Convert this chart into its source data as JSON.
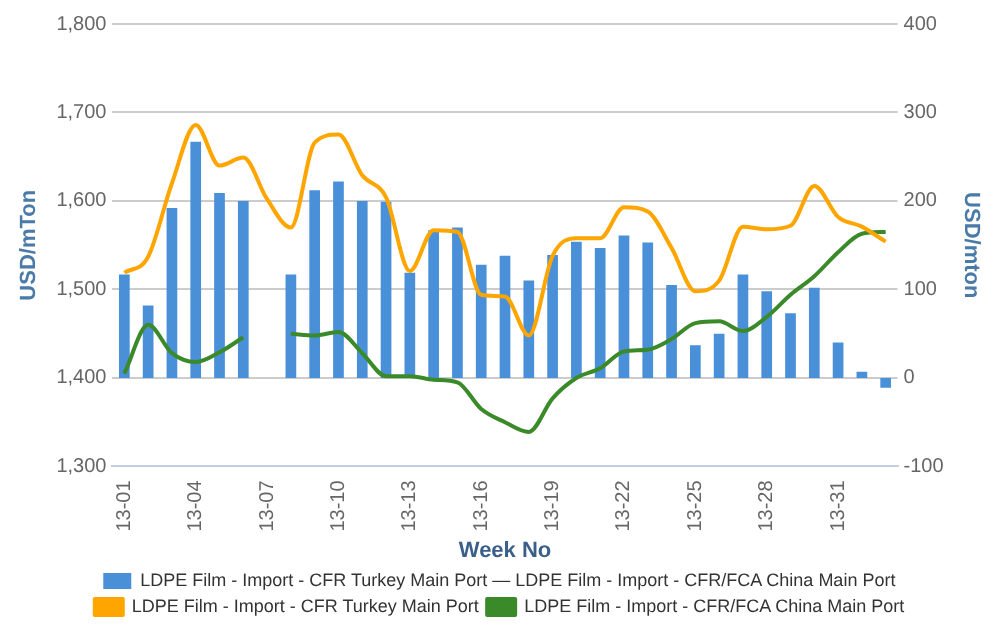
{
  "chart_data": {
    "type": "bar",
    "xlabel": "Week No",
    "ylabel": "USD/mTon",
    "y2label": "USD/mton",
    "categories": [
      "13-01",
      null,
      null,
      "13-04",
      null,
      null,
      "13-07",
      null,
      null,
      "13-10",
      null,
      null,
      "13-13",
      null,
      null,
      "13-16",
      null,
      null,
      "13-19",
      null,
      null,
      "13-22",
      null,
      null,
      "13-25",
      null,
      null,
      "13-28",
      null,
      null,
      "13-31",
      null,
      null
    ],
    "series": [
      {
        "name": "LDPE Film - Import - CFR Turkey Main Port — LDPE Film - Import - CFR/FCA China Main Port",
        "axis": "y2",
        "color": "#4a90d9",
        "values": [
          117,
          82,
          192,
          267,
          209,
          200,
          null,
          117,
          212,
          222,
          200,
          199,
          119,
          167,
          170,
          128,
          138,
          110,
          139,
          154,
          147,
          161,
          153,
          105,
          37,
          50,
          117,
          98,
          73,
          102,
          40,
          7,
          -11
        ]
      },
      {
        "name": "LDPE Film - Import - CFR Turkey Main Port",
        "type": "line",
        "color": "#ffa500",
        "values": [
          1519,
          1537,
          1620,
          1686,
          1640,
          1649,
          1602,
          1570,
          1666,
          1675,
          1629,
          1604,
          1521,
          1567,
          1565,
          1494,
          1492,
          1448,
          1538,
          1558,
          1558,
          1593,
          1588,
          1547,
          1498,
          1510,
          1571,
          1568,
          1572,
          1617,
          1582,
          1571,
          1554
        ]
      },
      {
        "name": "LDPE Film - Import - CFR/FCA China Main Port",
        "type": "line",
        "color": "#3a8a2a",
        "values": [
          1405,
          1460,
          1428,
          1418,
          1429,
          1446,
          null,
          1450,
          1448,
          1452,
          1428,
          1402,
          1402,
          1398,
          1395,
          1365,
          1350,
          1339,
          1377,
          1400,
          1411,
          1430,
          1432,
          1444,
          1462,
          1464,
          1453,
          1469,
          1494,
          1515,
          1542,
          1563,
          1565
        ]
      }
    ],
    "ylim": [
      1300,
      1800
    ],
    "yticks": [
      {
        "value": 1300,
        "label": "1,300"
      },
      {
        "value": 1400,
        "label": "1,400"
      },
      {
        "value": 1500,
        "label": "1,500"
      },
      {
        "value": 1600,
        "label": "1,600"
      },
      {
        "value": 1700,
        "label": "1,700"
      },
      {
        "value": 1800,
        "label": "1,800"
      }
    ],
    "y2lim": [
      -100,
      400
    ],
    "y2ticks": [
      -100,
      0,
      100,
      200,
      300,
      400
    ],
    "grid": "y",
    "legend": "bottom",
    "marker": "none",
    "line_style": "solid"
  }
}
